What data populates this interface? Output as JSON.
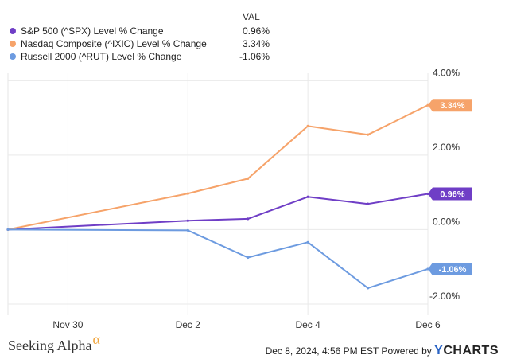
{
  "legend": {
    "value_header": "VAL",
    "items": [
      {
        "label": "S&P 500 (^SPX) Level % Change",
        "value": "0.96%",
        "color": "#6f3ec6"
      },
      {
        "label": "Nasdaq Composite (^IXIC) Level % Change",
        "value": "3.34%",
        "color": "#f6a36a"
      },
      {
        "label": "Russell 2000 (^RUT) Level % Change",
        "value": "-1.06%",
        "color": "#6d9be0"
      }
    ]
  },
  "footer": {
    "brand": "Seeking Alpha",
    "brand_symbol": "α",
    "timestamp": "Dec 8, 2024, 4:56 PM EST Powered by",
    "ycharts_first": "Y",
    "ycharts_rest": "CHARTS"
  },
  "chart_data": {
    "type": "line",
    "x_tick_labels": [
      "Nov 30",
      "Dec 2",
      "Dec 4",
      "Dec 6"
    ],
    "y_tick_labels": [
      "4.00%",
      "2.00%",
      "0.00%",
      "-2.00%"
    ],
    "y_ticks": [
      4,
      2,
      0,
      -2
    ],
    "ylim": [
      -2.3,
      4.2
    ],
    "x_dates": [
      "2024-11-29",
      "2024-12-02",
      "2024-12-03",
      "2024-12-04",
      "2024-12-05",
      "2024-12-06"
    ],
    "x_ticks": [
      "2024-11-30",
      "2024-12-02",
      "2024-12-04",
      "2024-12-06"
    ],
    "xlim": [
      "2024-11-29",
      "2024-12-06"
    ],
    "grid": true,
    "legend_position": "top-left",
    "series": [
      {
        "name": "S&P 500 (^SPX) Level % Change",
        "color": "#6f3ec6",
        "values": [
          0,
          0.24,
          0.29,
          0.88,
          0.69,
          0.96
        ],
        "end_label": "0.96%"
      },
      {
        "name": "Nasdaq Composite (^IXIC) Level % Change",
        "color": "#f6a36a",
        "values": [
          0,
          0.97,
          1.37,
          2.78,
          2.55,
          3.34
        ],
        "end_label": "3.34%"
      },
      {
        "name": "Russell 2000 (^RUT) Level % Change",
        "color": "#6d9be0",
        "values": [
          0,
          -0.02,
          -0.75,
          -0.34,
          -1.57,
          -1.06
        ],
        "end_label": "-1.06%"
      }
    ]
  }
}
